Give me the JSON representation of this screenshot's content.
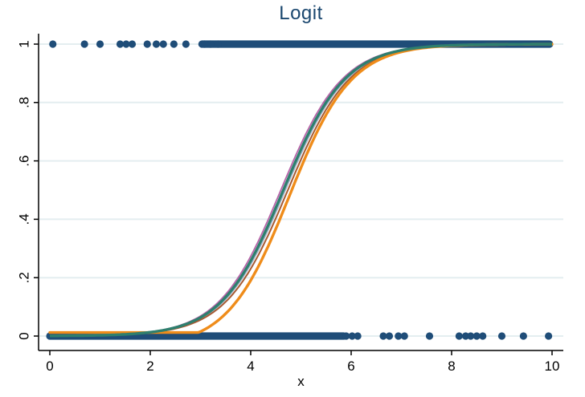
{
  "chart_data": {
    "type": "scatter",
    "title": "Logit",
    "xlabel": "x",
    "ylabel": "",
    "xlim": [
      0,
      10
    ],
    "ylim": [
      0,
      1
    ],
    "grid": "horizontal",
    "legend": "none",
    "x_ticks": {
      "values": [
        0,
        2,
        4,
        6,
        8,
        10
      ],
      "labels": [
        "0",
        "2",
        "4",
        "6",
        "8",
        "10"
      ]
    },
    "y_ticks": {
      "values": [
        0,
        0.2,
        0.4,
        0.6,
        0.8,
        1
      ],
      "labels": [
        "0",
        ".2",
        ".4",
        ".6",
        ".8",
        "1"
      ]
    },
    "colors": {
      "title": "#1a476f",
      "scatter": "#1f4d78",
      "axis": "#000000",
      "gridline": "#e4eef0",
      "fit_teal": "#2e7f6e",
      "fit_sienna": "#a65a33",
      "fit_lightblue": "#a3b3c9",
      "fit_magenta": "#b763a8",
      "lowess_orange": "#ef8c1a"
    },
    "scatter": {
      "marker": "circle",
      "marker_radius_px": 4.6,
      "y1": {
        "y": 1,
        "band": {
          "from": 3.03,
          "to": 9.95
        },
        "singles": [
          0.06,
          0.69,
          1.0,
          1.4,
          1.52,
          1.64,
          1.94,
          2.12,
          2.26,
          2.47,
          2.71,
          3.08,
          3.2,
          3.35
        ]
      },
      "y0": {
        "y": 0,
        "band": {
          "from": 0.0,
          "to": 5.85
        },
        "singles": [
          5.9,
          6.02,
          6.13,
          6.64,
          6.76,
          6.94,
          7.06,
          7.56,
          8.15,
          8.28,
          8.38,
          8.5,
          8.62,
          9.0,
          9.43,
          9.93
        ]
      }
    },
    "curves": [
      {
        "name": "fit-magenta",
        "color_key": "fit_magenta",
        "width": 1.8,
        "k": 1.63,
        "center": 4.6
      },
      {
        "name": "fit-lightblue",
        "color_key": "fit_lightblue",
        "width": 1.7,
        "k": 1.63,
        "center": 4.69
      },
      {
        "name": "fit-sienna",
        "color_key": "fit_sienna",
        "width": 2.0,
        "k": 1.63,
        "center": 4.74
      },
      {
        "name": "fit-teal",
        "color_key": "fit_teal",
        "width": 3.4,
        "k": 1.63,
        "center": 4.65
      }
    ],
    "lowess": {
      "name": "lowess-orange",
      "color_key": "lowess_orange",
      "width": 3.4,
      "flat_y": 0.012,
      "flat_to": 3.0,
      "k": 1.63,
      "center": 4.77,
      "threshold": 0.05
    }
  }
}
